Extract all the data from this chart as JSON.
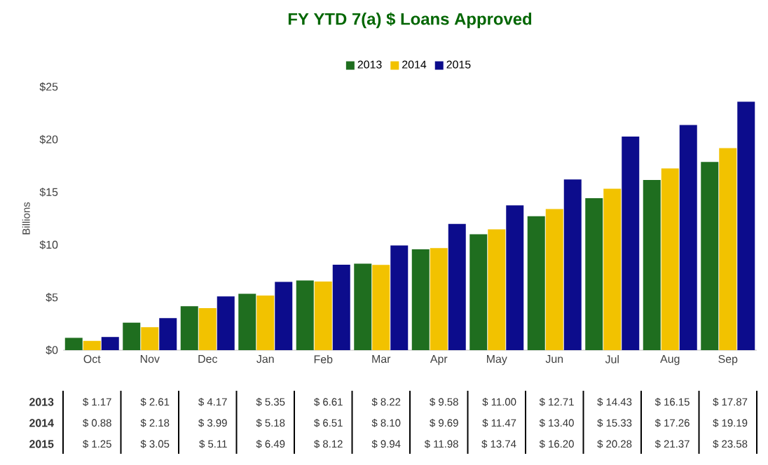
{
  "chart_data": {
    "type": "bar",
    "title": "FY YTD 7(a) $ Loans Approved",
    "ylabel": "Billions",
    "categories": [
      "Oct",
      "Nov",
      "Dec",
      "Jan",
      "Feb",
      "Mar",
      "Apr",
      "May",
      "Jun",
      "Jul",
      "Aug",
      "Sep"
    ],
    "series": [
      {
        "name": "2013",
        "color": "#1f6e1f",
        "values": [
          1.17,
          2.61,
          4.17,
          5.35,
          6.61,
          8.22,
          9.58,
          11.0,
          12.71,
          14.43,
          16.15,
          17.87
        ],
        "value_labels": [
          "$ 1.17",
          "$ 2.61",
          "$ 4.17",
          "$ 5.35",
          "$ 6.61",
          "$ 8.22",
          "$ 9.58",
          "$ 11.00",
          "$ 12.71",
          "$ 14.43",
          "$ 16.15",
          "$ 17.87"
        ]
      },
      {
        "name": "2014",
        "color": "#f2c200",
        "values": [
          0.88,
          2.18,
          3.99,
          5.18,
          6.51,
          8.1,
          9.69,
          11.47,
          13.4,
          15.33,
          17.26,
          19.19
        ],
        "value_labels": [
          "$ 0.88",
          "$ 2.18",
          "$ 3.99",
          "$ 5.18",
          "$ 6.51",
          "$ 8.10",
          "$ 9.69",
          "$ 11.47",
          "$ 13.40",
          "$ 15.33",
          "$ 17.26",
          "$ 19.19"
        ]
      },
      {
        "name": "2015",
        "color": "#0c0c8c",
        "values": [
          1.25,
          3.05,
          5.11,
          6.49,
          8.12,
          9.94,
          11.98,
          13.74,
          16.2,
          20.28,
          21.37,
          23.58
        ],
        "value_labels": [
          "$ 1.25",
          "$ 3.05",
          "$ 5.11",
          "$ 6.49",
          "$ 8.12",
          "$ 9.94",
          "$ 11.98",
          "$ 13.74",
          "$ 16.20",
          "$ 20.28",
          "$ 21.37",
          "$ 23.58"
        ]
      }
    ],
    "ylim": [
      0,
      25
    ],
    "yticks": [
      {
        "value": 0,
        "label": "$0"
      },
      {
        "value": 5,
        "label": "$5"
      },
      {
        "value": 10,
        "label": "$10"
      },
      {
        "value": 15,
        "label": "$15"
      },
      {
        "value": 20,
        "label": "$20"
      },
      {
        "value": 25,
        "label": "$25"
      }
    ],
    "legend": "top"
  }
}
